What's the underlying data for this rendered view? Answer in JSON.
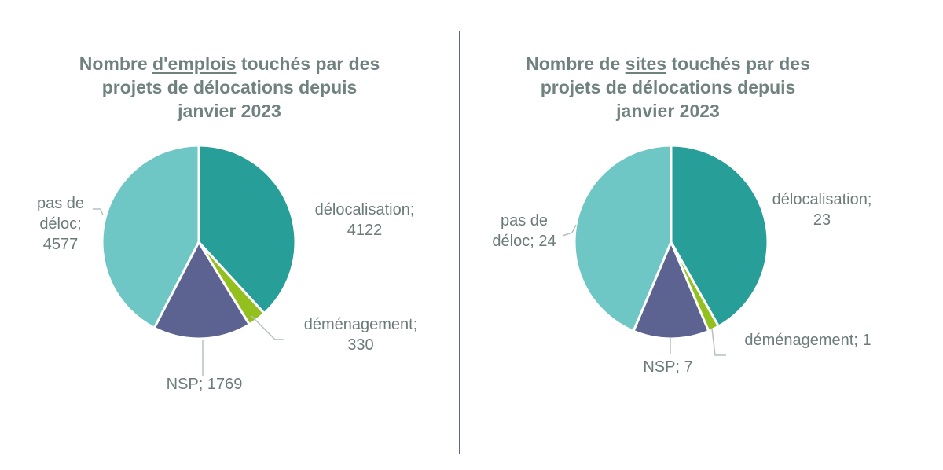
{
  "colors": {
    "delocalisation": "#279e98",
    "demenagement": "#93c01f",
    "nsp": "#5c6391",
    "pas_de_deloc": "#6ec7c5",
    "leader": "#b5c0bf"
  },
  "chart_data": [
    {
      "type": "pie",
      "title": {
        "pre": "Nombre ",
        "underlined": "d'emplois",
        "post": " touchés par des",
        "line2": "projets de délocations depuis",
        "line3": "janvier 2023"
      },
      "slices": [
        {
          "name": "délocalisation;",
          "value": 4122,
          "color": "#279e98"
        },
        {
          "name": "déménagement;",
          "value": 330,
          "color": "#93c01f"
        },
        {
          "name": "NSP;",
          "value": 1769,
          "color": "#5c6391"
        },
        {
          "name": "pas de déloc;",
          "value": 4577,
          "color": "#6ec7c5"
        }
      ]
    },
    {
      "type": "pie",
      "title": {
        "pre": "Nombre de ",
        "underlined": "sites",
        "post": " touchés par des",
        "line2": "projets de délocations depuis",
        "line3": "janvier 2023"
      },
      "slices": [
        {
          "name": "délocalisation;",
          "value": 23,
          "color": "#279e98"
        },
        {
          "name": "déménagement;",
          "value": 1,
          "color": "#93c01f"
        },
        {
          "name": "NSP;",
          "value": 7,
          "color": "#5c6391"
        },
        {
          "name": "pas de déloc;",
          "value": 24,
          "color": "#6ec7c5"
        }
      ]
    }
  ]
}
